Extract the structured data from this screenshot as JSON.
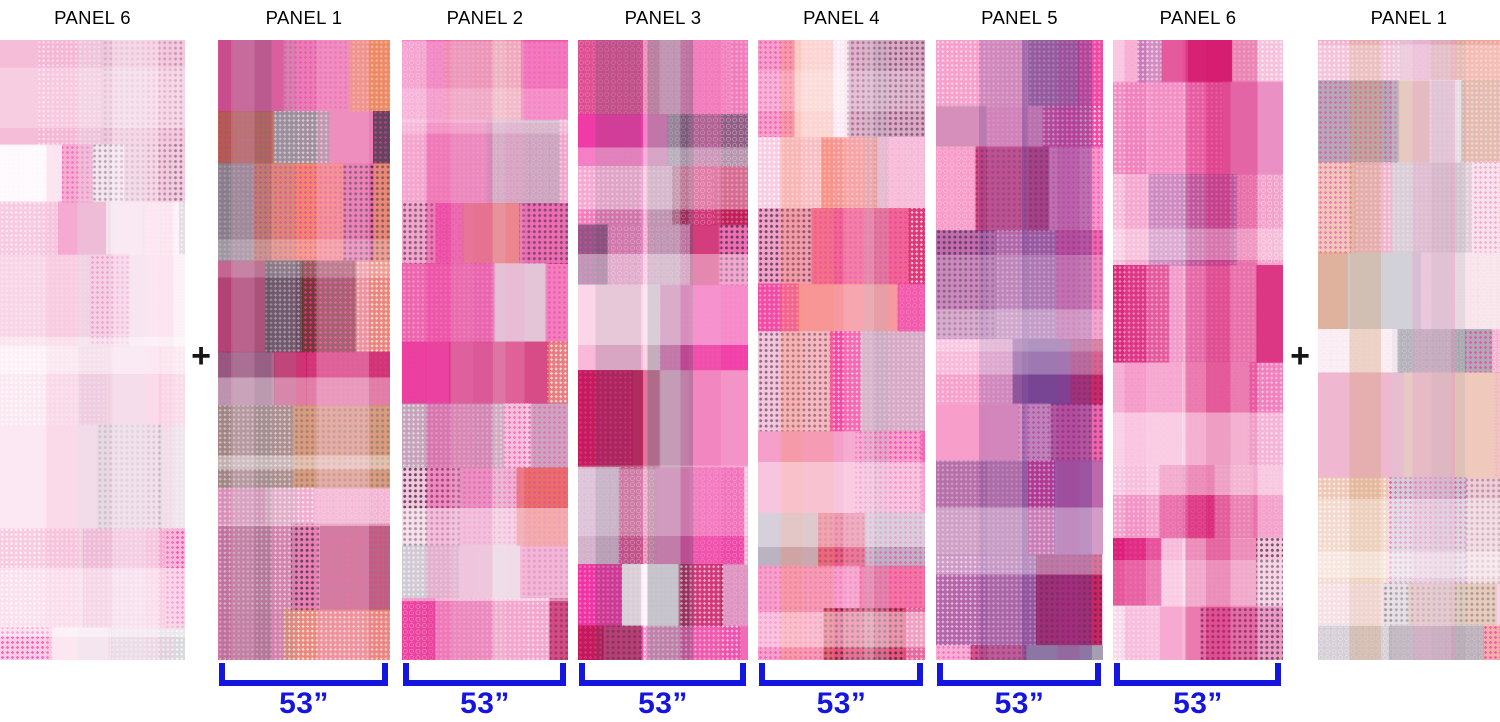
{
  "diagram": {
    "plus_symbol": "+",
    "accent_color": "#1515e0",
    "label_color": "#000000",
    "background": "#ffffff"
  },
  "panels": [
    {
      "label": "PANEL 6",
      "width_label": "",
      "bracket": false,
      "seed": 160,
      "palette": [
        "#fce8f2",
        "#f9c6de",
        "#f3a3cc",
        "#e2e2e8",
        "#ffffff",
        "#f07ab8",
        "#cfd4da",
        "#f4b8d6"
      ]
    },
    {
      "label": "PANEL 1",
      "width_label": "53”",
      "bracket": true,
      "seed": 11,
      "palette": [
        "#e87fb4",
        "#32353f",
        "#7a441c",
        "#c35f1f",
        "#ef8f45",
        "#c11355",
        "#ee3d98",
        "#f4a9cf",
        "#8d9298",
        "#5a2d18"
      ]
    },
    {
      "label": "PANEL 2",
      "width_label": "53”",
      "bracket": true,
      "seed": 22,
      "palette": [
        "#f4a6ce",
        "#e82a94",
        "#f06ab6",
        "#c81a60",
        "#9aa0aa",
        "#f4f4f6",
        "#e05a3c",
        "#d9d9de",
        "#f8d4e6"
      ]
    },
    {
      "label": "PANEL 3",
      "width_label": "53”",
      "bracket": true,
      "seed": 33,
      "palette": [
        "#f06cb4",
        "#ee2ca0",
        "#f9c3dd",
        "#ffffff",
        "#b81048",
        "#4a5260",
        "#f285c0",
        "#c7ccd4"
      ]
    },
    {
      "label": "PANEL 4",
      "width_label": "53”",
      "bracket": true,
      "seed": 44,
      "palette": [
        "#f4a0ca",
        "#f23a9c",
        "#fad2e4",
        "#e8406a",
        "#ffffff",
        "#d81b60",
        "#b0b6c0",
        "#f98f6a"
      ]
    },
    {
      "label": "PANEL 5",
      "width_label": "53”",
      "bracket": true,
      "seed": 55,
      "palette": [
        "#f585c0",
        "#f25aae",
        "#fbd5e8",
        "#6a3d8f",
        "#46487e",
        "#e91e8c",
        "#f9a8d0",
        "#9aa2b0",
        "#c2185b"
      ]
    },
    {
      "label": "PANEL 6",
      "width_label": "53”",
      "bracket": true,
      "seed": 66,
      "palette": [
        "#f4a2cc",
        "#f060b0",
        "#fbd0e5",
        "#d4126a",
        "#7b5ea7",
        "#f8c5de",
        "#9aa0ac",
        "#ffffff",
        "#e889c0"
      ]
    },
    {
      "label": "PANEL 1",
      "width_label": "",
      "bracket": false,
      "seed": 110,
      "palette": [
        "#f2ccd8",
        "#eec6ac",
        "#cf9d6e",
        "#ec93c2",
        "#ccd1d7",
        "#fceef5",
        "#979da6",
        "#f2a8cc",
        "#ef9a88"
      ]
    }
  ]
}
